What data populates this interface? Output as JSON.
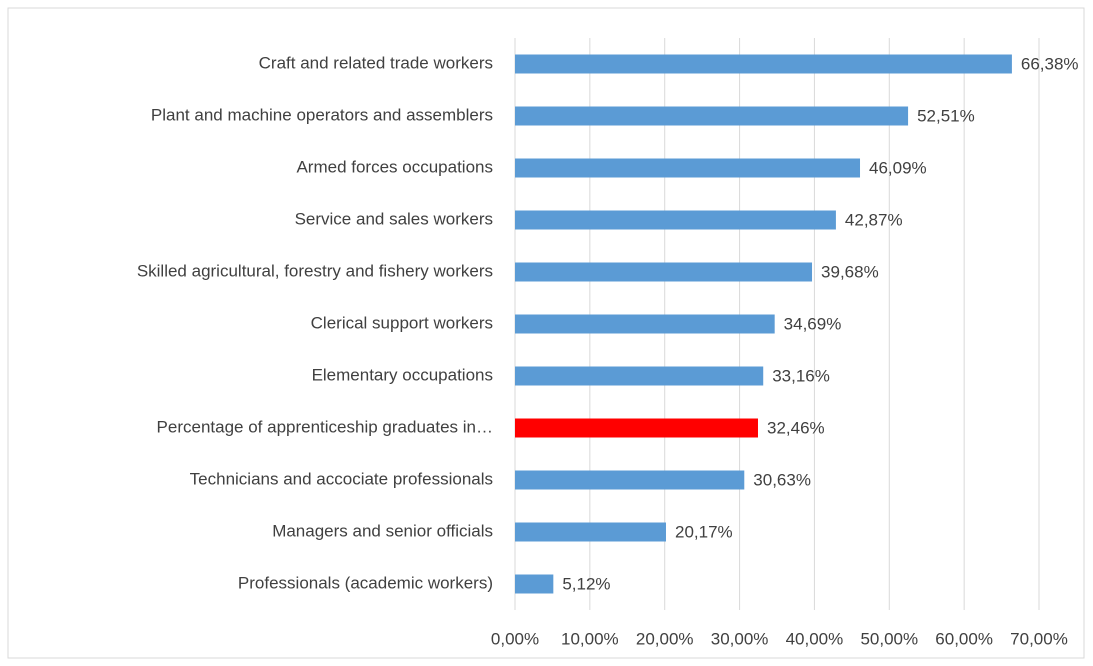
{
  "chart_data": {
    "type": "bar",
    "orientation": "horizontal",
    "categories": [
      "Craft and related trade workers",
      "Plant and machine operators and assemblers",
      "Armed forces occupations",
      "Service and sales workers",
      "Skilled agricultural, forestry and fishery workers",
      "Clerical support workers",
      "Elementary occupations",
      "Percentage of apprenticeship graduates in…",
      "Technicians and accociate professionals",
      "Managers and senior officials",
      "Professionals (academic workers)"
    ],
    "values": [
      66.38,
      52.51,
      46.09,
      42.87,
      39.68,
      34.69,
      33.16,
      32.46,
      30.63,
      20.17,
      5.12
    ],
    "value_labels": [
      "66,38%",
      "52,51%",
      "46,09%",
      "42,87%",
      "39,68%",
      "34,69%",
      "33,16%",
      "32,46%",
      "30,63%",
      "20,17%",
      "5,12%"
    ],
    "colors": [
      "#5b9bd5",
      "#5b9bd5",
      "#5b9bd5",
      "#5b9bd5",
      "#5b9bd5",
      "#5b9bd5",
      "#5b9bd5",
      "#ff0000",
      "#5b9bd5",
      "#5b9bd5",
      "#5b9bd5"
    ],
    "xlim": [
      0,
      70
    ],
    "xticks": [
      {
        "value": 0,
        "label": "0,00%"
      },
      {
        "value": 10,
        "label": "10,00%"
      },
      {
        "value": 20,
        "label": "20,00%"
      },
      {
        "value": 30,
        "label": "30,00%"
      },
      {
        "value": 40,
        "label": "40,00%"
      },
      {
        "value": 50,
        "label": "50,00%"
      },
      {
        "value": 60,
        "label": "60,00%"
      },
      {
        "value": 70,
        "label": "70,00%"
      }
    ],
    "grid": true
  }
}
